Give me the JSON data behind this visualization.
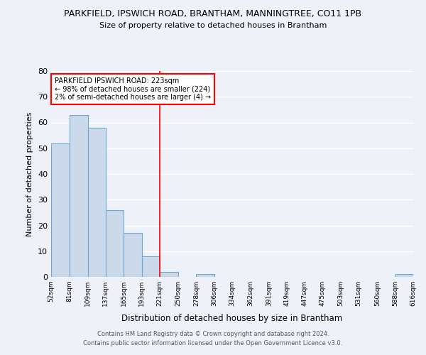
{
  "title": "PARKFIELD, IPSWICH ROAD, BRANTHAM, MANNINGTREE, CO11 1PB",
  "subtitle": "Size of property relative to detached houses in Brantham",
  "xlabel": "Distribution of detached houses by size in Brantham",
  "ylabel": "Number of detached properties",
  "bin_edges": [
    52,
    81,
    109,
    137,
    165,
    193,
    221,
    250,
    278,
    306,
    334,
    362,
    391,
    419,
    447,
    475,
    503,
    531,
    560,
    588,
    616
  ],
  "bar_heights": [
    52,
    63,
    58,
    26,
    17,
    8,
    2,
    0,
    1,
    0,
    0,
    0,
    0,
    0,
    0,
    0,
    0,
    0,
    0,
    1
  ],
  "bar_color": "#ccd9ea",
  "bar_edge_color": "#6aaad4",
  "ref_line_x": 221,
  "ylim": [
    0,
    80
  ],
  "yticks": [
    0,
    10,
    20,
    30,
    40,
    50,
    60,
    70,
    80
  ],
  "annotation_line1": "PARKFIELD IPSWICH ROAD: 223sqm",
  "annotation_line2": "← 98% of detached houses are smaller (224)",
  "annotation_line3": "2% of semi-detached houses are larger (4) →",
  "footer_line1": "Contains HM Land Registry data © Crown copyright and database right 2024.",
  "footer_line2": "Contains public sector information licensed under the Open Government Licence v3.0.",
  "tick_labels": [
    "52sqm",
    "81sqm",
    "109sqm",
    "137sqm",
    "165sqm",
    "193sqm",
    "221sqm",
    "250sqm",
    "278sqm",
    "306sqm",
    "334sqm",
    "362sqm",
    "391sqm",
    "419sqm",
    "447sqm",
    "475sqm",
    "503sqm",
    "531sqm",
    "560sqm",
    "588sqm",
    "616sqm"
  ],
  "background_color": "#eef2f8"
}
